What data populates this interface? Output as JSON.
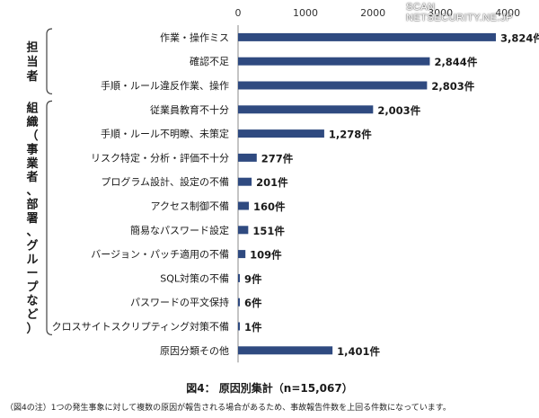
{
  "watermark": "SCAN NETSECURITY.NE.JP",
  "chart_data": {
    "type": "bar",
    "orientation": "horizontal",
    "x_ticks": [
      "0",
      "1000",
      "2000",
      "3000",
      "4000"
    ],
    "xlim": [
      0,
      4000
    ],
    "grid": false,
    "categories": [
      "作業・操作ミス",
      "確認不足",
      "手順・ルール違反作業、操作",
      "従業員教育不十分",
      "手順・ルール不明瞭、未策定",
      "リスク特定・分析・評価不十分",
      "プログラム設計、設定の不備",
      "アクセス制御不備",
      "簡易なパスワード設定",
      "バージョン・パッチ適用の不備",
      "SQL対策の不備",
      "パスワードの平文保持",
      "クロスサイトスクリプティング対策不備",
      "原因分類その他"
    ],
    "values": [
      3824,
      2844,
      2803,
      2003,
      1278,
      277,
      201,
      160,
      151,
      109,
      9,
      6,
      1,
      1401
    ],
    "data_labels": [
      "3,824件",
      "2,844件",
      "2,803件",
      "2,003件",
      "1,278件",
      "277件",
      "201件",
      "160件",
      "151件",
      "109件",
      "9件",
      "6件",
      "1件",
      "1,401件"
    ],
    "groups": [
      {
        "label": "担当者",
        "first": 0,
        "last": 2
      },
      {
        "label": "組織（事業者、部署、グループなど）",
        "first": 3,
        "last": 12
      }
    ],
    "bar_color": "#2f4a80"
  },
  "caption": "図4： 原因別集計（n=15,067）",
  "note": "（図4の注）1つの発生事象に対して複数の原因が報告される場合があるため、事故報告件数を上回る件数になっています。"
}
